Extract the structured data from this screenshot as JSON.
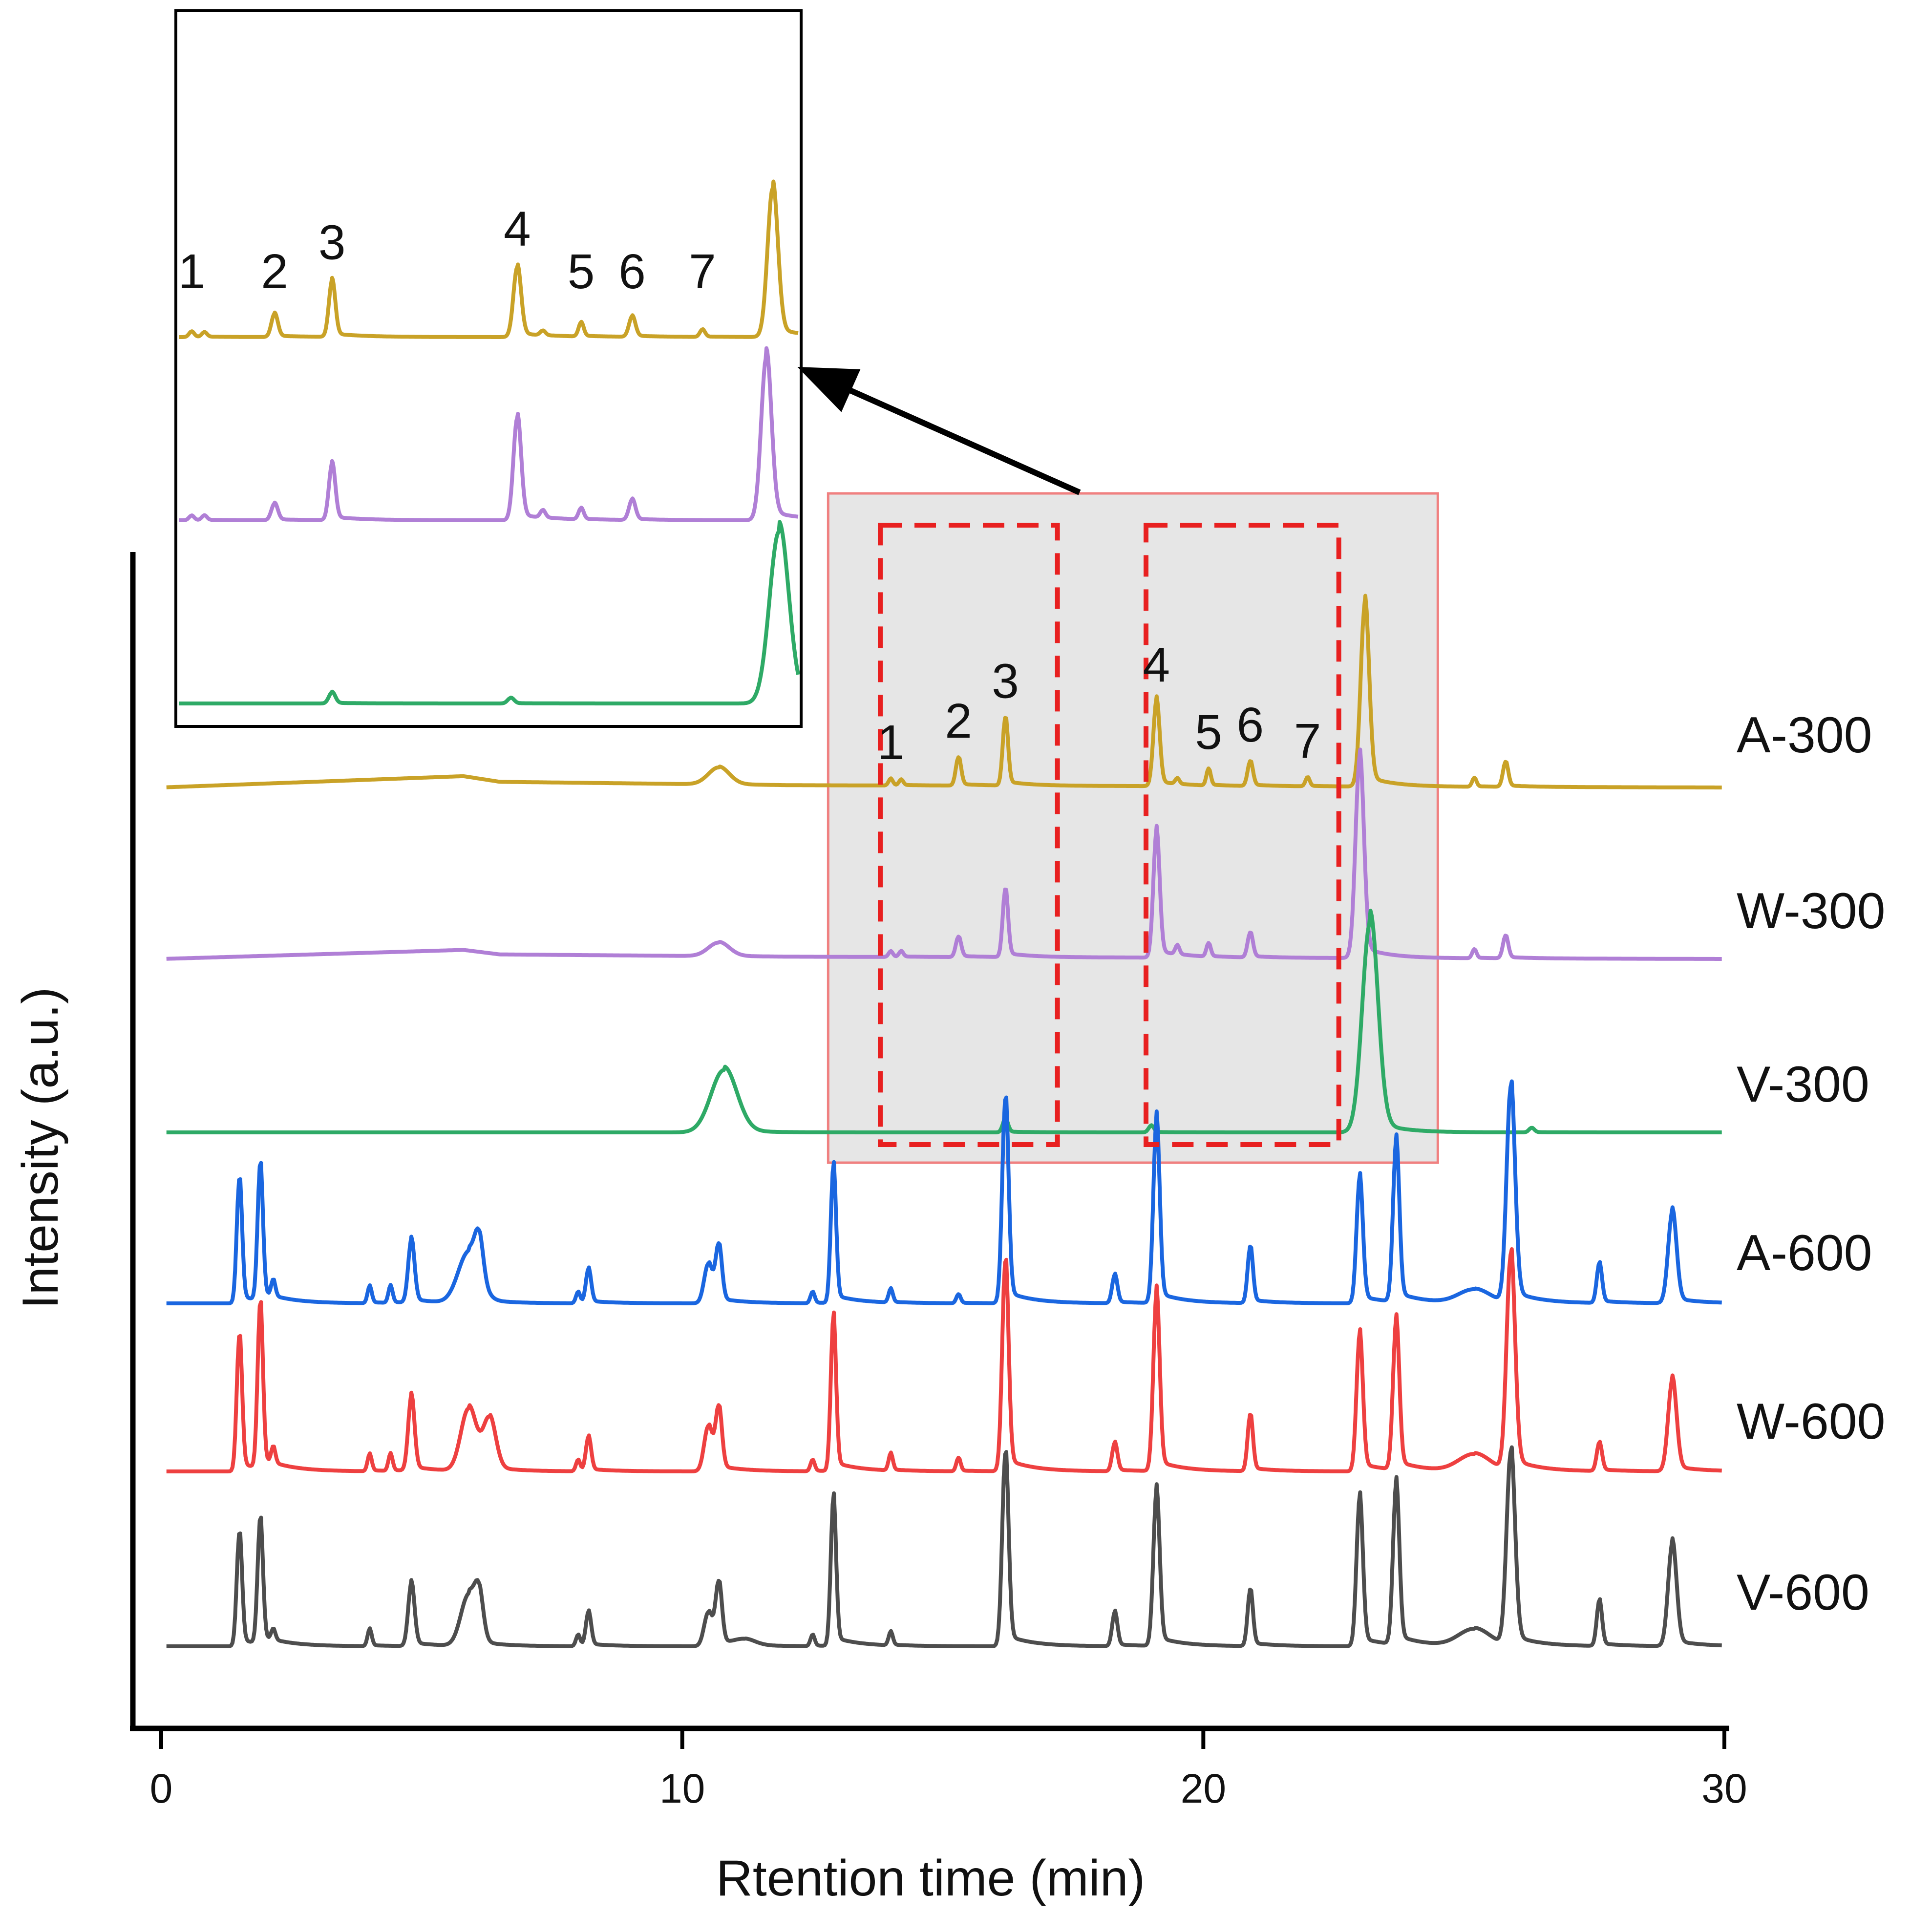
{
  "chart_data": {
    "type": "line",
    "subtype": "stacked chromatograms (GC-MS)",
    "xlabel": "Rtention time (min)",
    "ylabel": "Intensity (a.u.)",
    "xlim": [
      0,
      30
    ],
    "x_ticks": [
      0,
      10,
      20,
      30
    ],
    "y_ticks": [],
    "grid": false,
    "series": [
      {
        "name": "A-300",
        "color": "#c9a227",
        "baseline_drift": [
          [
            0,
            0
          ],
          [
            5.8,
            0.1
          ],
          [
            6.5,
            0.05
          ],
          [
            12,
            0.02
          ],
          [
            30,
            0
          ]
        ],
        "peaks": [
          [
            10.7,
            0.15,
            0.2
          ],
          [
            14.0,
            0.06,
            0.04
          ],
          [
            14.2,
            0.05,
            0.04
          ],
          [
            15.3,
            0.25,
            0.05
          ],
          [
            16.2,
            0.6,
            0.05
          ],
          [
            19.1,
            0.75,
            0.06
          ],
          [
            19.5,
            0.05,
            0.04
          ],
          [
            20.1,
            0.15,
            0.04
          ],
          [
            20.9,
            0.22,
            0.05
          ],
          [
            22.0,
            0.08,
            0.04
          ],
          [
            23.1,
            1.6,
            0.08
          ],
          [
            25.2,
            0.08,
            0.04
          ],
          [
            25.8,
            0.22,
            0.05
          ]
        ]
      },
      {
        "name": "W-300",
        "color": "#b07fd6",
        "baseline_drift": [
          [
            0,
            0
          ],
          [
            5.8,
            0.08
          ],
          [
            6.5,
            0.04
          ],
          [
            12,
            0.02
          ],
          [
            30,
            0
          ]
        ],
        "peaks": [
          [
            10.7,
            0.12,
            0.2
          ],
          [
            14.0,
            0.05,
            0.04
          ],
          [
            14.2,
            0.05,
            0.04
          ],
          [
            15.3,
            0.18,
            0.05
          ],
          [
            16.2,
            0.6,
            0.05
          ],
          [
            19.1,
            1.1,
            0.06
          ],
          [
            19.5,
            0.08,
            0.04
          ],
          [
            20.1,
            0.12,
            0.04
          ],
          [
            20.9,
            0.22,
            0.05
          ],
          [
            23.0,
            1.75,
            0.08
          ],
          [
            25.2,
            0.08,
            0.04
          ],
          [
            25.8,
            0.2,
            0.05
          ]
        ]
      },
      {
        "name": "V-300",
        "color": "#2eaa66",
        "baseline_drift": [
          [
            0,
            0
          ],
          [
            30,
            0
          ]
        ],
        "peaks": [
          [
            10.8,
            0.55,
            0.25
          ],
          [
            16.2,
            0.12,
            0.05
          ],
          [
            19.0,
            0.06,
            0.05
          ],
          [
            23.2,
            1.85,
            0.15
          ],
          [
            26.3,
            0.04,
            0.05
          ]
        ]
      },
      {
        "name": "A-600",
        "color": "#1a66e0",
        "baseline_drift": [
          [
            0,
            0
          ],
          [
            30,
            0
          ]
        ],
        "peaks": [
          [
            1.5,
            1.1,
            0.05
          ],
          [
            1.9,
            1.2,
            0.05
          ],
          [
            2.15,
            0.15,
            0.04
          ],
          [
            4.0,
            0.15,
            0.04
          ],
          [
            4.4,
            0.15,
            0.04
          ],
          [
            4.8,
            0.55,
            0.06
          ],
          [
            5.9,
            0.45,
            0.2
          ],
          [
            6.1,
            0.35,
            0.08
          ],
          [
            8.0,
            0.1,
            0.04
          ],
          [
            8.2,
            0.3,
            0.05
          ],
          [
            10.5,
            0.35,
            0.08
          ],
          [
            10.7,
            0.5,
            0.06
          ],
          [
            12.5,
            0.1,
            0.04
          ],
          [
            12.9,
            1.2,
            0.05
          ],
          [
            14.0,
            0.12,
            0.04
          ],
          [
            15.3,
            0.08,
            0.04
          ],
          [
            16.2,
            1.8,
            0.06
          ],
          [
            18.3,
            0.25,
            0.05
          ],
          [
            19.1,
            1.6,
            0.06
          ],
          [
            20.9,
            0.5,
            0.05
          ],
          [
            23.0,
            1.1,
            0.06
          ],
          [
            23.7,
            1.4,
            0.06
          ],
          [
            25.2,
            0.12,
            0.3
          ],
          [
            25.9,
            1.9,
            0.08
          ],
          [
            27.6,
            0.35,
            0.05
          ],
          [
            29.0,
            0.8,
            0.08
          ]
        ]
      },
      {
        "name": "W-600",
        "color": "#ee4040",
        "baseline_drift": [
          [
            0,
            0
          ],
          [
            30,
            0
          ]
        ],
        "peaks": [
          [
            1.5,
            1.2,
            0.05
          ],
          [
            1.9,
            1.45,
            0.05
          ],
          [
            2.15,
            0.15,
            0.04
          ],
          [
            4.0,
            0.15,
            0.04
          ],
          [
            4.4,
            0.15,
            0.04
          ],
          [
            4.8,
            0.65,
            0.06
          ],
          [
            5.9,
            0.55,
            0.15
          ],
          [
            6.3,
            0.45,
            0.12
          ],
          [
            8.0,
            0.1,
            0.04
          ],
          [
            8.2,
            0.3,
            0.05
          ],
          [
            10.5,
            0.4,
            0.08
          ],
          [
            10.7,
            0.55,
            0.06
          ],
          [
            12.5,
            0.1,
            0.04
          ],
          [
            12.9,
            1.35,
            0.05
          ],
          [
            14.0,
            0.15,
            0.04
          ],
          [
            15.3,
            0.12,
            0.04
          ],
          [
            16.2,
            1.85,
            0.06
          ],
          [
            18.3,
            0.25,
            0.05
          ],
          [
            19.1,
            1.55,
            0.06
          ],
          [
            20.9,
            0.5,
            0.05
          ],
          [
            23.0,
            1.2,
            0.06
          ],
          [
            23.7,
            1.3,
            0.06
          ],
          [
            25.2,
            0.15,
            0.3
          ],
          [
            25.9,
            1.9,
            0.08
          ],
          [
            27.6,
            0.25,
            0.05
          ],
          [
            29.0,
            0.8,
            0.08
          ]
        ]
      },
      {
        "name": "V-600",
        "color": "#4d4d4d",
        "baseline_drift": [
          [
            0,
            0
          ],
          [
            30,
            0
          ]
        ],
        "peaks": [
          [
            1.5,
            1.0,
            0.05
          ],
          [
            1.9,
            1.1,
            0.05
          ],
          [
            2.15,
            0.1,
            0.04
          ],
          [
            4.0,
            0.15,
            0.04
          ],
          [
            4.8,
            0.55,
            0.06
          ],
          [
            5.9,
            0.45,
            0.15
          ],
          [
            6.1,
            0.35,
            0.08
          ],
          [
            8.0,
            0.1,
            0.04
          ],
          [
            8.2,
            0.3,
            0.05
          ],
          [
            10.5,
            0.3,
            0.08
          ],
          [
            10.7,
            0.55,
            0.06
          ],
          [
            11.2,
            0.05,
            0.2
          ],
          [
            12.5,
            0.1,
            0.04
          ],
          [
            12.9,
            1.3,
            0.05
          ],
          [
            14.0,
            0.12,
            0.04
          ],
          [
            16.2,
            1.7,
            0.06
          ],
          [
            18.3,
            0.3,
            0.05
          ],
          [
            19.1,
            1.35,
            0.06
          ],
          [
            20.9,
            0.5,
            0.05
          ],
          [
            23.0,
            1.3,
            0.06
          ],
          [
            23.7,
            1.4,
            0.06
          ],
          [
            25.2,
            0.15,
            0.3
          ],
          [
            25.9,
            1.7,
            0.08
          ],
          [
            27.6,
            0.4,
            0.05
          ],
          [
            29.0,
            0.9,
            0.08
          ]
        ]
      }
    ],
    "highlight_region": {
      "x_range": [
        12.8,
        24.5
      ],
      "label": ""
    },
    "dashed_boxes": [
      {
        "x_range": [
          13.8,
          17.2
        ],
        "peaks": [
          "1",
          "2",
          "3"
        ]
      },
      {
        "x_range": [
          18.9,
          22.6
        ],
        "peaks": [
          "4",
          "5",
          "6",
          "7"
        ]
      }
    ],
    "peak_labels": [
      {
        "label": "1",
        "x": 14.0
      },
      {
        "label": "2",
        "x": 15.3
      },
      {
        "label": "3",
        "x": 16.2
      },
      {
        "label": "4",
        "x": 19.1
      },
      {
        "label": "5",
        "x": 20.1
      },
      {
        "label": "6",
        "x": 20.9
      },
      {
        "label": "7",
        "x": 22.0
      }
    ],
    "inset": {
      "description": "zoom of the boxed regions for A-300, W-300, V-300",
      "series": [
        "A-300",
        "W-300",
        "V-300"
      ],
      "x_range": [
        13.8,
        23.5
      ],
      "peak_labels": [
        "1",
        "2",
        "3",
        "4",
        "5",
        "6",
        "7"
      ]
    }
  }
}
